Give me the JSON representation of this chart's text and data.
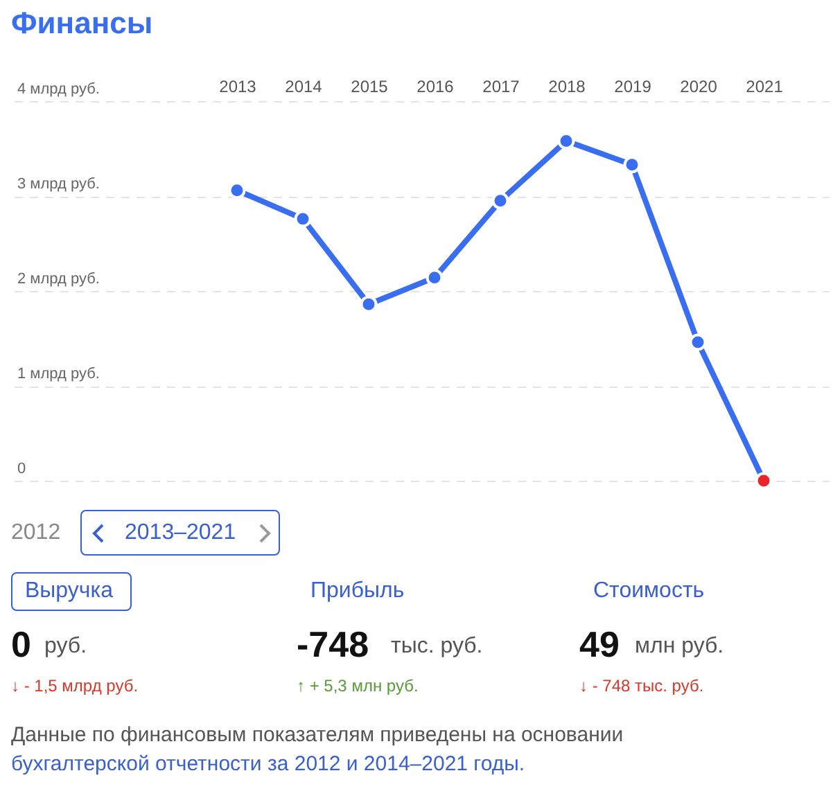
{
  "chart_data": [
    {
      "type": "line",
      "title": "Финансы",
      "categories": [
        "2013",
        "2014",
        "2015",
        "2016",
        "2017",
        "2018",
        "2019",
        "2020",
        "2021"
      ],
      "series": [
        {
          "color": "#3a6ef0",
          "colors": [
            "#3a6ef0",
            "#3a6ef0",
            "#3a6ef0",
            "#3a6ef0",
            "#3a6ef0",
            "#3a6ef0",
            "#3a6ef0",
            "#3a6ef0",
            "#e8262a"
          ],
          "values": [
            3.06,
            2.76,
            1.86,
            2.14,
            2.95,
            3.58,
            3.33,
            1.46,
            0
          ]
        }
      ],
      "ylim": [
        0,
        4
      ],
      "yticks": [
        0,
        {
          "value": 1,
          "label": "1 млрд руб."
        },
        {
          "value": 2,
          "label": "2 млрд руб."
        },
        {
          "value": 3,
          "label": "3 млрд руб."
        },
        {
          "value": 4,
          "label": "4 млрд руб."
        }
      ],
      "grid": "y",
      "marker": "circle",
      "line_style": "solid"
    },
    {
      "type": "other",
      "annotations": [
        "2012",
        "2013–2021",
        "Выручка",
        "Прибыль",
        "Стоимость",
        "0",
        "руб.",
        "-748",
        "тыс. руб.",
        "49",
        "млн руб.",
        "↓ - 1,5 млрд руб.",
        "↑ + 5,3 млн руб.",
        "↓ - 748 тыс. руб.",
        "Данные по финансовым показателям приведены на основании",
        "бухгалтерской отчетности за 2012 и 2014–2021 годы."
      ]
    }
  ]
}
